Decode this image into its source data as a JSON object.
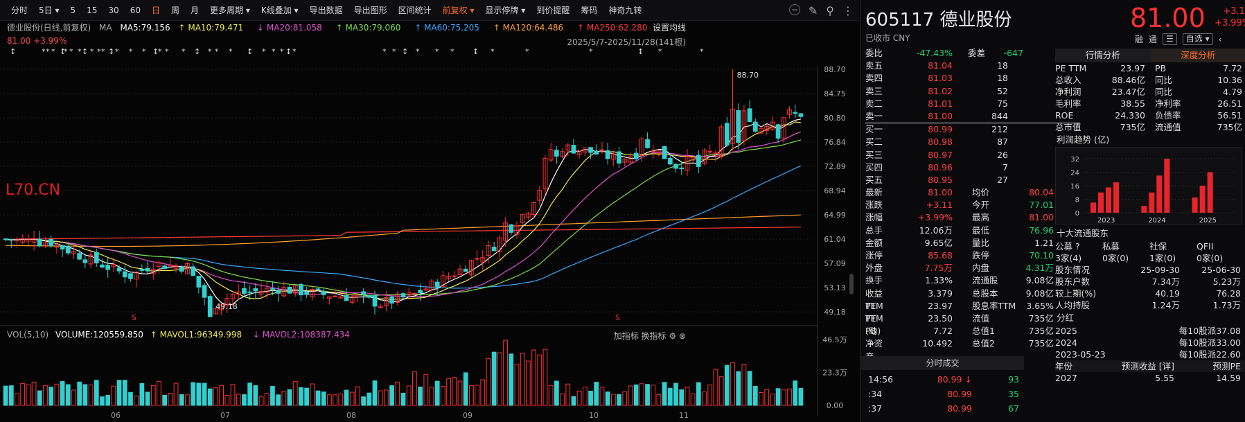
{
  "toolbar": {
    "items": [
      "分时",
      "5日",
      "5",
      "15",
      "30",
      "60",
      "日",
      "周",
      "月",
      "更多周期",
      "K线叠加",
      "导出数据",
      "导出图形",
      "区间统计",
      "前复权",
      "显示停牌",
      "到价提醒",
      "筹码",
      "神奇九转"
    ],
    "active_index": 6,
    "orange_index": 14
  },
  "chart_header": {
    "name": "德业股份(日线,前复权)",
    "ma_label": "MA",
    "ma5": "MA5:79.156",
    "ma10": "MA10:79.471",
    "ma20": "MA20:81.058",
    "ma30": "MA30:79.060",
    "ma60": "MA60:75.205",
    "ma120": "MA120:64.486",
    "ma250": "MA250:62.280",
    "set_ma": "设置均线",
    "price_info": "81.00  +3.99%",
    "range": "2025/5/7-2025/11/28(141根)",
    "watermark": "L70.CN"
  },
  "colors": {
    "up": "#ff3030",
    "down": "#30d0d0",
    "ma5": "#ffffff",
    "ma10": "#f2e94e",
    "ma20": "#e050d0",
    "ma30": "#7ddc4a",
    "ma60": "#3aa7ff",
    "ma120": "#ff9e30",
    "ma250": "#ff3838"
  },
  "y_axis": {
    "labels": [
      "88.70",
      "84.75",
      "80.80",
      "76.84",
      "72.89",
      "68.94",
      "64.99",
      "61.04",
      "57.09",
      "53.13",
      "49.18"
    ],
    "high_label": "88.70",
    "low_label": "49.18"
  },
  "x_axis": {
    "labels": [
      "06",
      "07",
      "08",
      "09",
      "10",
      "11"
    ]
  },
  "volume": {
    "title": "VOL(5,10)",
    "volume": "VOLUME:120559.850",
    "mavol1": "MAVOL1:96349.998",
    "mavol2": "MAVOL2:108387.434",
    "axis": [
      "46.5万",
      "23.3万",
      "0.00"
    ],
    "tools": "加指标 换指标"
  },
  "chart_data": [
    {
      "type": "candlestick",
      "title": "德业股份(日线,前复权)",
      "x_range": [
        "2025-05-07",
        "2025-11-28"
      ],
      "count": 141,
      "ylim": [
        49.18,
        88.7
      ],
      "high": 88.7,
      "low": 49.18,
      "last_close": 81.0,
      "ma": {
        "MA5": 79.156,
        "MA10": 79.471,
        "MA20": 81.058,
        "MA30": 79.06,
        "MA60": 75.205,
        "MA120": 64.486,
        "MA250": 62.28
      }
    },
    {
      "type": "bar",
      "title": "VOL(5,10)",
      "volume": 120559.85,
      "MAVOL1": 96349.998,
      "MAVOL2": 108387.434,
      "ylim": [
        0,
        465000
      ]
    }
  ],
  "header": {
    "code": "605117",
    "name": "德业股份",
    "status": "已收市 CNY",
    "price": "81.00",
    "change": "+3.11",
    "change_pct": "+3.99%",
    "btn1": "融",
    "btn2": "通",
    "btn3": "自选"
  },
  "orderbook": {
    "weibi": {
      "label": "委比",
      "value": "-47.43%",
      "label2": "委差",
      "value2": "-647"
    },
    "sells": [
      {
        "label": "卖五",
        "price": "81.04",
        "vol": "18"
      },
      {
        "label": "卖四",
        "price": "81.03",
        "vol": "18"
      },
      {
        "label": "卖三",
        "price": "81.02",
        "vol": "52"
      },
      {
        "label": "卖二",
        "price": "81.01",
        "vol": "75"
      },
      {
        "label": "卖一",
        "price": "81.00",
        "vol": "844"
      }
    ],
    "buys": [
      {
        "label": "买一",
        "price": "80.99",
        "vol": "212"
      },
      {
        "label": "买二",
        "price": "80.98",
        "vol": "87"
      },
      {
        "label": "买三",
        "price": "80.97",
        "vol": "26"
      },
      {
        "label": "买四",
        "price": "80.96",
        "vol": "7"
      },
      {
        "label": "买五",
        "price": "80.95",
        "vol": "27"
      }
    ],
    "stats": [
      {
        "k": "最新",
        "v": "81.00",
        "vc": "red",
        "k2": "均价",
        "v2": "80.04",
        "v2c": "red"
      },
      {
        "k": "涨跌",
        "v": "+3.11",
        "vc": "red",
        "k2": "今开",
        "v2": "77.01",
        "v2c": "green"
      },
      {
        "k": "涨幅",
        "v": "+3.99%",
        "vc": "red",
        "k2": "最高",
        "v2": "81.00",
        "v2c": "red"
      },
      {
        "k": "总手",
        "v": "12.06万",
        "vc": "white",
        "k2": "最低",
        "v2": "76.96",
        "v2c": "green"
      },
      {
        "k": "金额",
        "v": "9.65亿",
        "vc": "white",
        "k2": "量比",
        "v2": "1.21",
        "v2c": "white"
      },
      {
        "k": "涨停",
        "v": "85.68",
        "vc": "red",
        "k2": "跌停",
        "v2": "70.10",
        "v2c": "green"
      },
      {
        "k": "外盘",
        "v": "7.75万",
        "vc": "red",
        "k2": "内盘",
        "v2": "4.31万",
        "v2c": "green"
      },
      {
        "k": "换手",
        "v": "1.33%",
        "vc": "white",
        "k2": "流通股",
        "v2": "9.08亿",
        "v2c": "white"
      },
      {
        "k": "收益TTM",
        "v": "3.379",
        "vc": "white",
        "k2": "总股本",
        "v2": "9.08亿",
        "v2c": "white"
      },
      {
        "k": "PE TTM",
        "v": "23.97",
        "vc": "white",
        "k2": "股息率TTM",
        "v2": "3.65%",
        "v2c": "white"
      },
      {
        "k": "PE (动)",
        "v": "23.50",
        "vc": "white",
        "k2": "流值",
        "v2": "735亿",
        "v2c": "white"
      },
      {
        "k": "PB",
        "v": "7.72",
        "vc": "white",
        "k2": "总值1",
        "v2": "735亿",
        "v2c": "white"
      },
      {
        "k": "净资产",
        "v": "10.492",
        "vc": "white",
        "k2": "总值2",
        "v2": "735亿",
        "v2c": "white"
      }
    ]
  },
  "ticks": {
    "title": "分时成交",
    "rows": [
      {
        "t": "14:56",
        "p": "80.99",
        "a": "93",
        "arrow": "↓"
      },
      {
        "t": ":34",
        "p": "80.99",
        "a": "35",
        "arrow": ""
      },
      {
        "t": ":37",
        "p": "80.99",
        "a": "67",
        "arrow": ""
      }
    ]
  },
  "fin": {
    "tab1": "行情分析",
    "tab2": "深度分析",
    "rows": [
      {
        "k": "PE TTM",
        "v": "23.97",
        "k2": "PB",
        "v2": "7.72"
      },
      {
        "k": "总收入",
        "v": "88.46亿",
        "k2": "同比",
        "v2": "10.36"
      },
      {
        "k": "净利润",
        "v": "23.47亿",
        "k2": "同比",
        "v2": "4.79"
      },
      {
        "k": "毛利率",
        "v": "38.55",
        "k2": "净利率",
        "v2": "26.51"
      },
      {
        "k": "ROE",
        "v": "24.330",
        "k2": "负债率",
        "v2": "56.51"
      },
      {
        "k": "总市值",
        "v": "735亿",
        "k2": "流通值",
        "v2": "735亿"
      }
    ],
    "profit_title": "利润趋势 (亿)",
    "profit_chart": {
      "type": "bar",
      "yticks": [
        "32",
        "24",
        "16",
        "8",
        "0"
      ],
      "years": [
        "2023",
        "2024",
        "2025"
      ],
      "values": [
        [
          6,
          12,
          15,
          18
        ],
        [
          4,
          12,
          22,
          32
        ],
        [
          9,
          16,
          24
        ]
      ]
    },
    "holders_title": "十大流通股东",
    "holders_head": [
      "公募",
      "私募",
      "社保",
      "QFII"
    ],
    "holders_vals": [
      "3家(4)",
      "0家(0)",
      "1家(0)",
      "0家(0)"
    ],
    "holders_rows": [
      {
        "k": "股东情况",
        "a": "25-09-30",
        "b": "25-06-30"
      },
      {
        "k": "股东户数",
        "a": "7.34万",
        "b": "5.23万"
      },
      {
        "k": "较上期(%)",
        "a": "40.19",
        "b": "76.28"
      },
      {
        "k": "人均持股",
        "a": "1.24万",
        "b": "1.73万"
      }
    ],
    "div_title": "分红",
    "div_rows": [
      {
        "y": "2025",
        "v": "每10股派37.08"
      },
      {
        "y": "2024",
        "v": "每10股派33.00"
      },
      {
        "y": "2023-05-23",
        "v": "每10股派22.60"
      }
    ],
    "bottom": {
      "k": "年份",
      "a": "预测收益",
      "b": "[详]",
      "c": "预测PE",
      "r1": "2027",
      "r1a": "5.55",
      "r1c": "14.59"
    }
  }
}
